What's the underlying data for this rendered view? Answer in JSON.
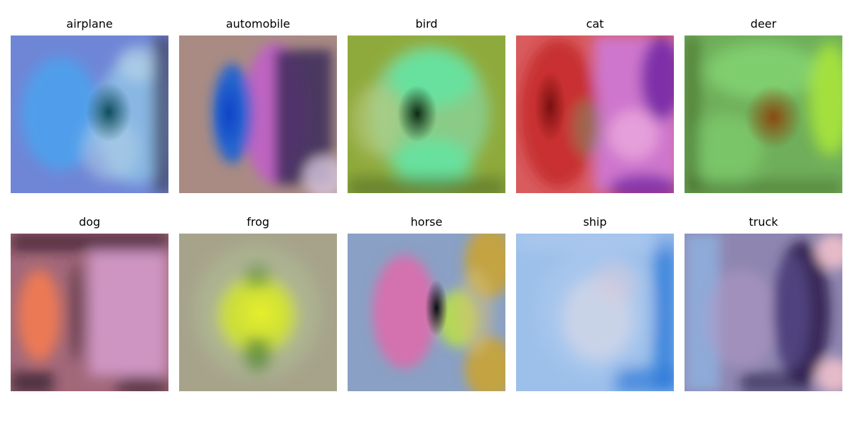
{
  "panels": [
    {
      "label": "airplane",
      "colors": {
        "base": "#6f86d6",
        "blob_a": "#4aa2ee",
        "blob_b": "#8fc3e6",
        "center": "#0e4d5e",
        "edge": "#3d3f5a",
        "accent": "#b7d4e8"
      }
    },
    {
      "label": "automobile",
      "colors": {
        "base": "#a98b84",
        "blob_a": "#1b5fd6",
        "blob_b": "#c060c8",
        "center": "#0d45c8",
        "edge": "#3b2a5a",
        "accent": "#d9c8e0"
      }
    },
    {
      "label": "bird",
      "colors": {
        "base": "#8faa3c",
        "blob_a": "#5fe6a4",
        "blob_b": "#88d39a",
        "center": "#0b2c14",
        "edge": "#4e6a2a",
        "accent": "#c1d08a"
      }
    },
    {
      "label": "cat",
      "colors": {
        "base": "#d85b5e",
        "blob_a": "#c12020",
        "blob_b": "#cc7be0",
        "center": "#7a1010",
        "edge": "#6b1fa0",
        "accent": "#f0b0e0"
      }
    },
    {
      "label": "deer",
      "colors": {
        "base": "#6fae5a",
        "blob_a": "#86dc76",
        "blob_b": "#a8e63c",
        "center": "#8a4a10",
        "edge": "#3c5a20",
        "accent": "#c8e88a"
      }
    },
    {
      "label": "dog",
      "colors": {
        "base": "#a2687a",
        "blob_a": "#f07a52",
        "blob_b": "#d9a0d4",
        "center": "#4a2a3a",
        "edge": "#3a1e2e",
        "accent": "#e8b0d0"
      }
    },
    {
      "label": "frog",
      "colors": {
        "base": "#a6a38a",
        "blob_a": "#d4e62a",
        "blob_b": "#b4c89a",
        "center": "#e4ee2c",
        "edge": "#7a7660",
        "accent": "#5a8a3a"
      }
    },
    {
      "label": "horse",
      "colors": {
        "base": "#8aa0c4",
        "blob_a": "#e06aaa",
        "blob_b": "#b8de4a",
        "center": "#0a0a14",
        "edge": "#c9a434",
        "accent": "#d4c07a"
      }
    },
    {
      "label": "ship",
      "colors": {
        "base": "#9cc0ea",
        "blob_a": "#c8d4ea",
        "blob_b": "#aac8ee",
        "center": "#cfd6e8",
        "edge": "#2a78d8",
        "accent": "#d4cadc"
      }
    },
    {
      "label": "truck",
      "colors": {
        "base": "#8e86b0",
        "blob_a": "#5a4e90",
        "blob_b": "#b49ac8",
        "center": "#7a74a8",
        "edge": "#2a1a4a",
        "accent": "#f4c4cc"
      }
    }
  ]
}
